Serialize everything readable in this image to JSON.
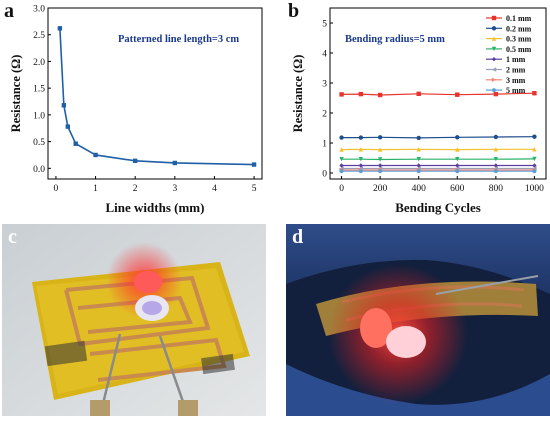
{
  "panels": {
    "a": {
      "letter": "a"
    },
    "b": {
      "letter": "b"
    },
    "c": {
      "letter": "c"
    },
    "d": {
      "letter": "d"
    }
  },
  "chart_data": [
    {
      "type": "line",
      "annotation": "Patterned line length=3 cm",
      "xlabel": "Line widths (mm)",
      "ylabel": "Resistance (Ω)",
      "xlim": [
        -0.2,
        5.2
      ],
      "ylim": [
        -0.2,
        3.0
      ],
      "xticks": [
        0,
        1,
        2,
        3,
        4,
        5
      ],
      "yticks": [
        0.0,
        0.5,
        1.0,
        1.5,
        2.0,
        2.5,
        3.0
      ],
      "ytick_labels": [
        "0.0",
        "0.5",
        "1.0",
        "1.5",
        "2.0",
        "2.5",
        "3.0"
      ],
      "color": "#1f5fa8",
      "grid": false,
      "x": [
        0.1,
        0.2,
        0.3,
        0.5,
        1,
        2,
        3,
        5
      ],
      "y": [
        2.62,
        1.18,
        0.78,
        0.46,
        0.25,
        0.14,
        0.1,
        0.07
      ]
    },
    {
      "type": "line",
      "annotation": "Bending radius=5 mm",
      "xlabel": "Bending Cycles",
      "ylabel": "Resistance (Ω)",
      "xlim": [
        -60,
        1060
      ],
      "ylim": [
        -0.2,
        5.5
      ],
      "xticks": [
        0,
        200,
        400,
        600,
        800,
        1000
      ],
      "yticks": [
        0,
        1,
        2,
        3,
        4,
        5
      ],
      "ytick_labels": [
        "0",
        "1",
        "2",
        "3",
        "4",
        "5"
      ],
      "legend_position": "top-right",
      "grid": false,
      "x": [
        0,
        100,
        200,
        400,
        600,
        800,
        1000
      ],
      "series": [
        {
          "name": "0.1 mm",
          "color": "#e8322c",
          "marker": "square",
          "values": [
            2.62,
            2.63,
            2.6,
            2.64,
            2.61,
            2.63,
            2.66
          ]
        },
        {
          "name": "0.2 mm",
          "color": "#1f4e8c",
          "marker": "circle",
          "values": [
            1.18,
            1.18,
            1.19,
            1.17,
            1.19,
            1.2,
            1.21
          ]
        },
        {
          "name": "0.3 mm",
          "color": "#f2c12e",
          "marker": "triangle",
          "values": [
            0.78,
            0.79,
            0.78,
            0.79,
            0.78,
            0.79,
            0.79
          ]
        },
        {
          "name": "0.5 mm",
          "color": "#2bb36b",
          "marker": "tri-down",
          "values": [
            0.46,
            0.46,
            0.45,
            0.46,
            0.46,
            0.46,
            0.47
          ]
        },
        {
          "name": "1 mm",
          "color": "#5a3fa0",
          "marker": "diamond",
          "values": [
            0.25,
            0.25,
            0.25,
            0.25,
            0.25,
            0.25,
            0.25
          ]
        },
        {
          "name": "2 mm",
          "color": "#9aa0b8",
          "marker": "tri-left",
          "values": [
            0.15,
            0.15,
            0.15,
            0.15,
            0.15,
            0.15,
            0.15
          ]
        },
        {
          "name": "3 mm",
          "color": "#f08878",
          "marker": "tri-right",
          "values": [
            0.1,
            0.1,
            0.1,
            0.1,
            0.1,
            0.1,
            0.1
          ]
        },
        {
          "name": "5 mm",
          "color": "#5aa0d8",
          "marker": "hexagon",
          "values": [
            0.06,
            0.06,
            0.06,
            0.06,
            0.06,
            0.06,
            0.06
          ]
        }
      ]
    }
  ]
}
